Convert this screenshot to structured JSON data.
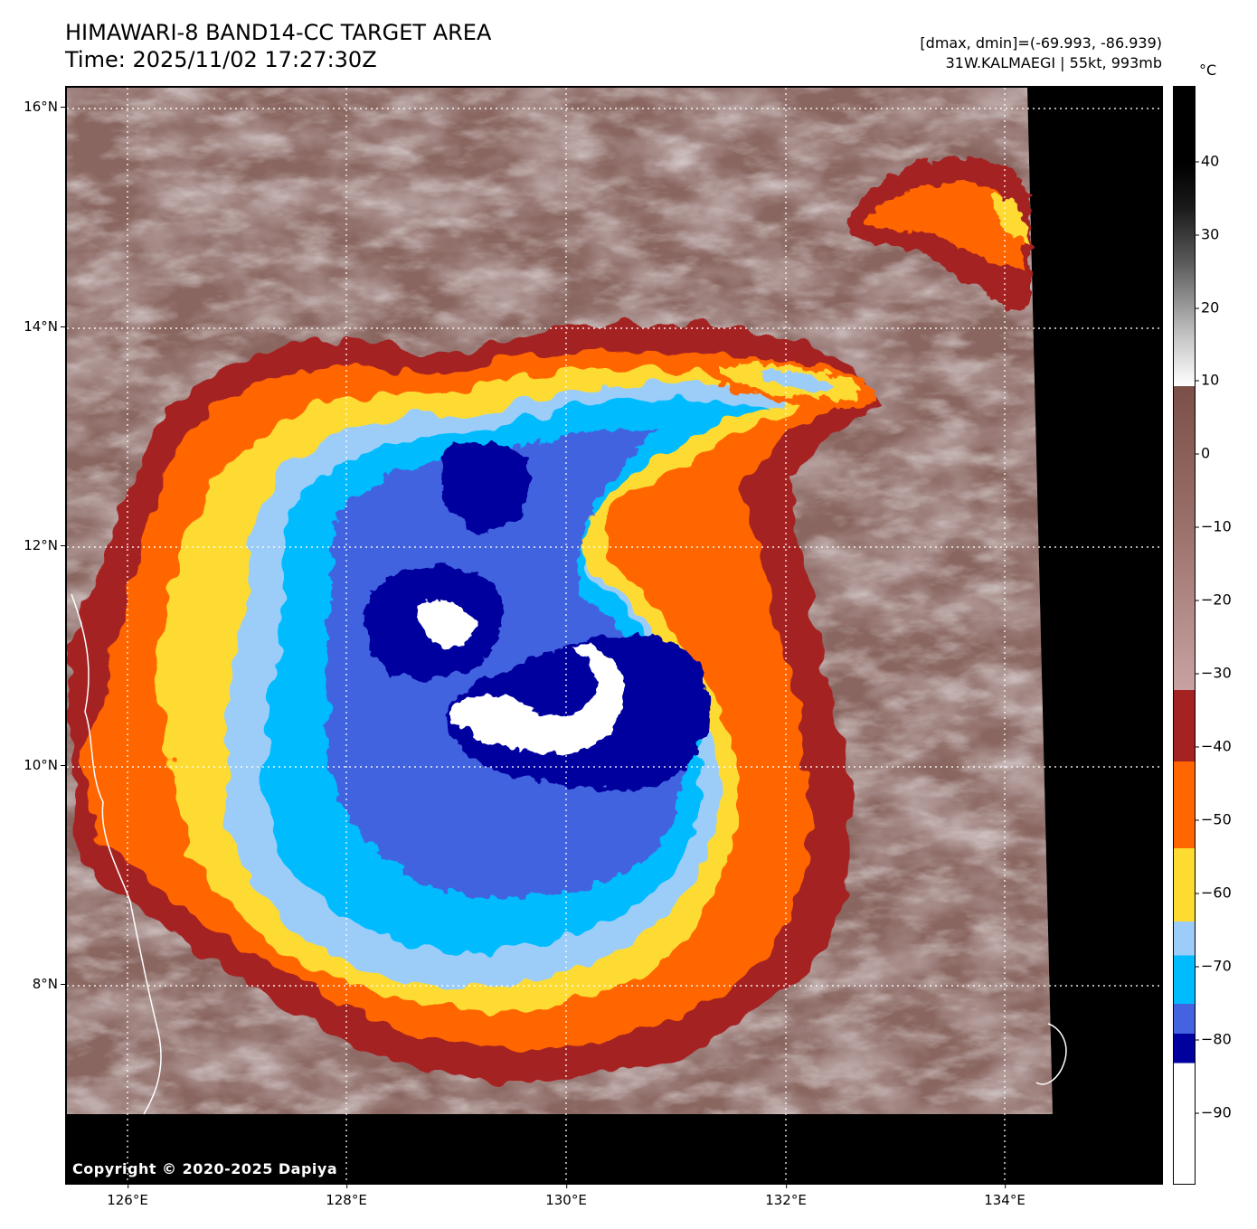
{
  "header": {
    "title": "HIMAWARI-8 BAND14-CC TARGET AREA",
    "time": "Time: 2025/11/02 17:27:30Z",
    "range": "[dmax, dmin]=(-69.993, -86.939)",
    "storm": "31W.KALMAEGI | 55kt, 993mb"
  },
  "map": {
    "copyright": "Copyright © 2020-2025 Dapiya",
    "lat_ticks": [
      "16°N",
      "14°N",
      "12°N",
      "10°N",
      "8°N"
    ],
    "lon_ticks": [
      "126°E",
      "128°E",
      "130°E",
      "132°E",
      "134°E"
    ],
    "region": "Tropical cyclone Kalmaegi east of the Philippines"
  },
  "colorbar": {
    "unit": "°C",
    "labels": [
      "40",
      "30",
      "20",
      "10",
      "0",
      "−10",
      "−20",
      "−30",
      "−40",
      "−50",
      "−60",
      "−70",
      "−80",
      "−90"
    ],
    "colors": {
      "dark_red": "#a52222",
      "orange": "#ff6600",
      "yellow": "#fddb30",
      "light_blue": "#9ccdf9",
      "sky_blue": "#00bcff",
      "royal_blue": "#4363e0",
      "navy": "#00009e",
      "white": "#ffffff",
      "pink": "#f5dcdc",
      "brown": "#7c5048"
    }
  }
}
